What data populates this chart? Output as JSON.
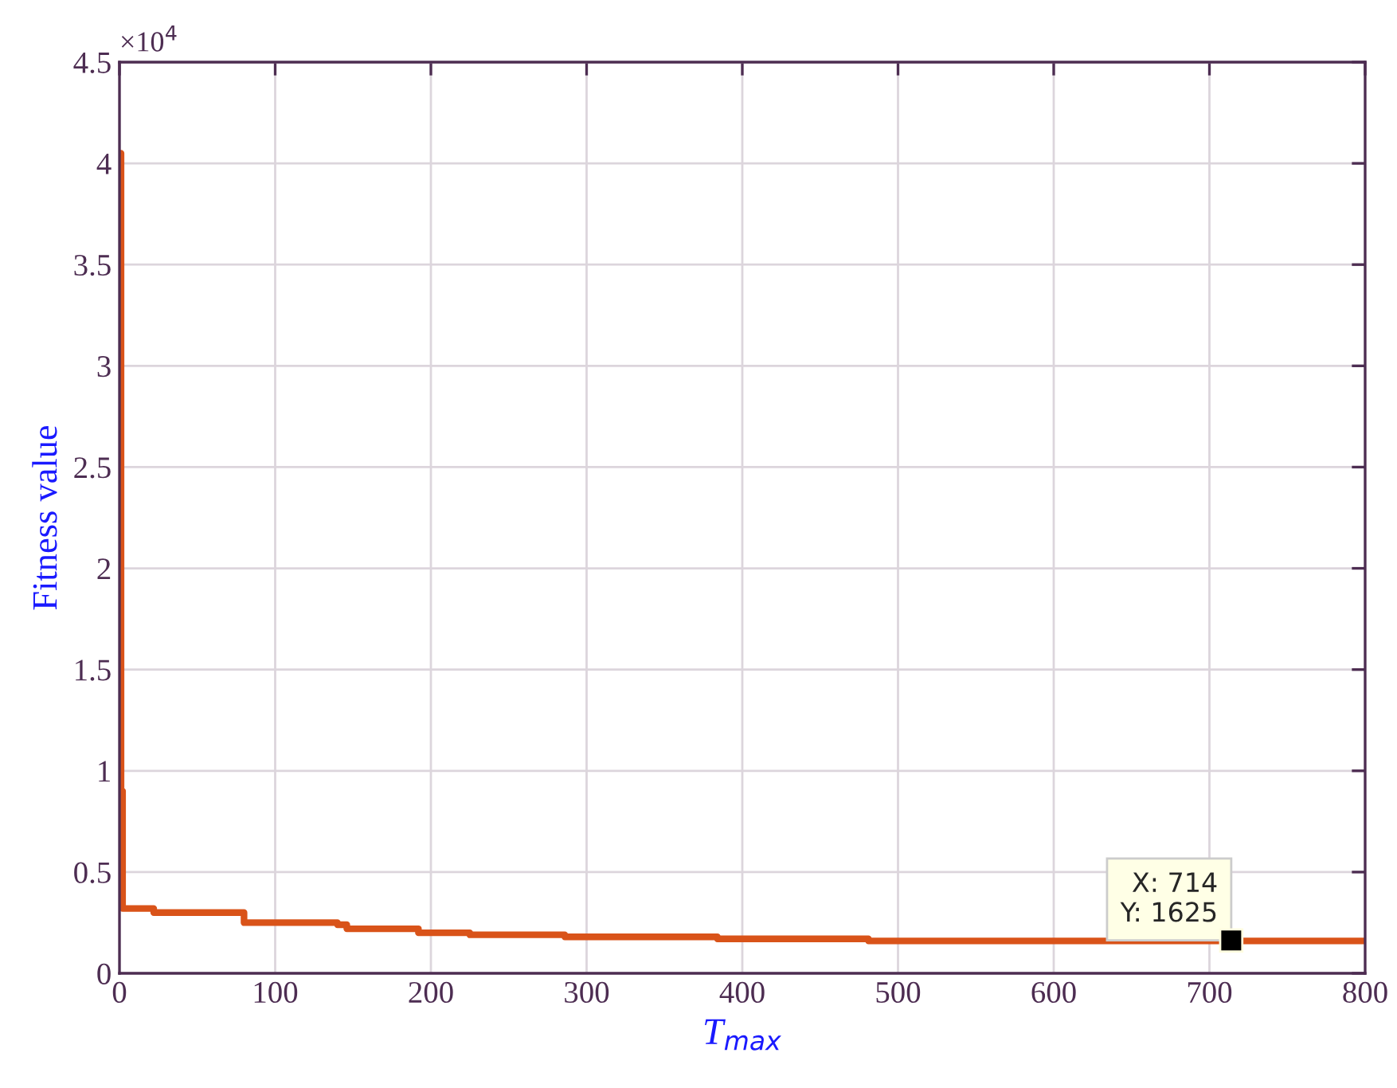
{
  "chart_data": {
    "type": "step",
    "xlabel": "T$_{max}$",
    "ylabel": "Fitness value",
    "x": [
      0,
      1,
      2,
      22,
      80,
      140,
      146,
      192,
      225,
      286,
      384,
      481,
      800
    ],
    "series": [
      {
        "color": "#d95319",
        "values": [
          4.05,
          0.9,
          0.32,
          0.3,
          0.25,
          0.24,
          0.22,
          0.2,
          0.19,
          0.18,
          0.17,
          0.16,
          0.16
        ]
      }
    ],
    "xlim": [
      0,
      800
    ],
    "xticks": [
      0,
      100,
      200,
      300,
      400,
      500,
      600,
      700,
      800
    ],
    "ylim": [
      0,
      4.5
    ],
    "yticks": [
      0,
      0.5,
      1,
      1.5,
      2,
      2.5,
      3,
      3.5,
      4,
      4.5
    ],
    "annotations": [
      "×10$^{4}$",
      {
        "text": "X: 714\nY: 1625",
        "x": 714,
        "y": 0.1625
      }
    ],
    "grid": true,
    "legend": false,
    "line_style": "solid",
    "marker": "none"
  }
}
